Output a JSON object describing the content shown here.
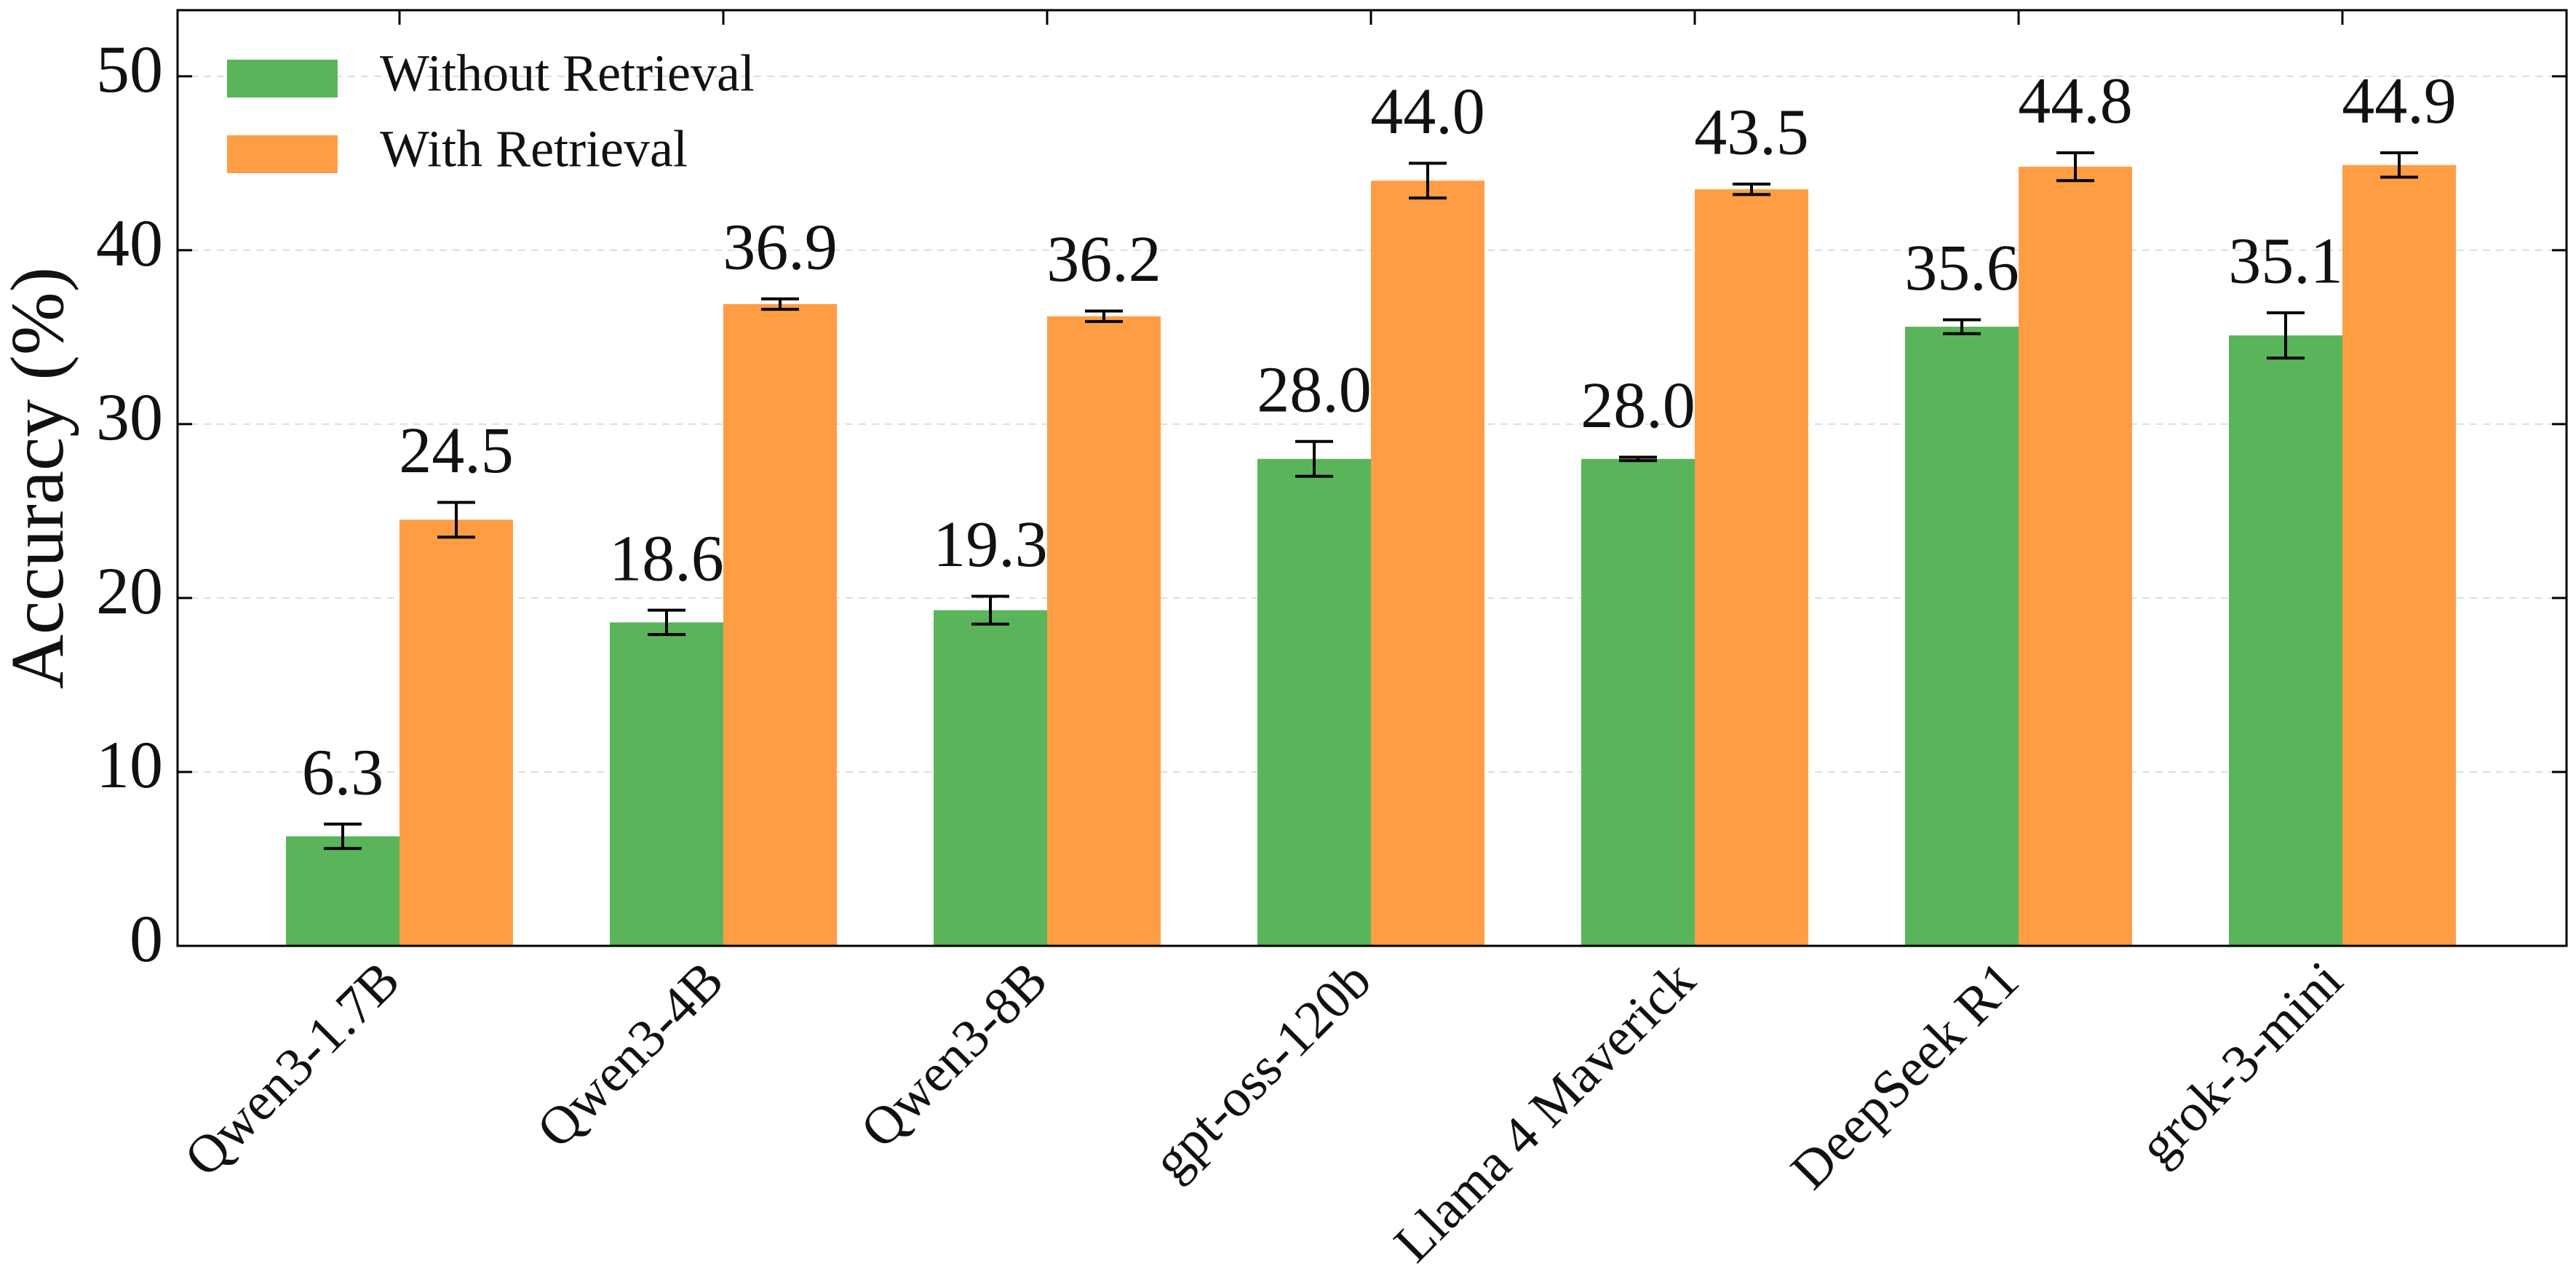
{
  "chart_data": {
    "type": "bar",
    "y_label": "Accuracy (%)",
    "categories": [
      "Qwen3-1.7B",
      "Qwen3-4B",
      "Qwen3-8B",
      "gpt-oss-120b",
      "Llama 4 Maverick",
      "DeepSeek R1",
      "grok-3-mini"
    ],
    "series": [
      {
        "name": "Without Retrieval",
        "color": "#5ab55a",
        "values": [
          6.3,
          18.6,
          19.3,
          28.0,
          28.0,
          35.6,
          35.1
        ],
        "value_labels": [
          "6.3",
          "18.6",
          "19.3",
          "28.0",
          "28.0",
          "35.6",
          "35.1"
        ],
        "errors": [
          0.7,
          0.7,
          0.8,
          1.0,
          0.1,
          0.4,
          1.3
        ]
      },
      {
        "name": "With Retrieval",
        "color": "#ff9d45",
        "values": [
          24.5,
          36.9,
          36.2,
          44.0,
          43.5,
          44.8,
          44.9
        ],
        "value_labels": [
          "24.5",
          "36.9",
          "36.2",
          "44.0",
          "43.5",
          "44.8",
          "44.9"
        ],
        "errors": [
          1.0,
          0.3,
          0.3,
          1.0,
          0.3,
          0.8,
          0.7
        ]
      }
    ],
    "ylim": [
      0,
      53.8
    ],
    "yticks": [
      0,
      10,
      20,
      30,
      40,
      50
    ],
    "grid": true,
    "legend": "upper-left"
  }
}
